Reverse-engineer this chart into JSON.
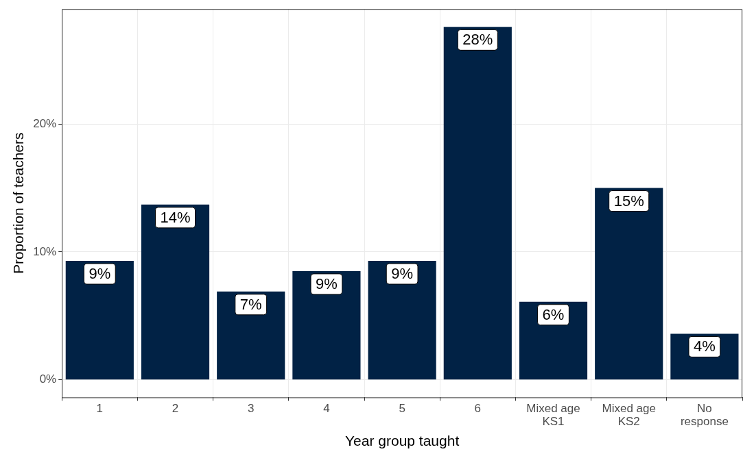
{
  "chart_data": {
    "type": "bar",
    "categories": [
      "1",
      "2",
      "3",
      "4",
      "5",
      "6",
      "Mixed age\nKS1",
      "Mixed age\nKS2",
      "No\nresponse"
    ],
    "values": [
      9.3,
      13.7,
      6.9,
      8.5,
      9.3,
      27.6,
      6.1,
      15.0,
      3.6
    ],
    "value_labels": [
      "9%",
      "14%",
      "7%",
      "9%",
      "9%",
      "28%",
      "6%",
      "15%",
      "4%"
    ],
    "color": "#012245",
    "xlabel": "Year group taught",
    "ylabel": "Proportion of teachers",
    "ylim": [
      -1.38,
      29
    ],
    "yticks": [
      {
        "value": 0,
        "label": "0%"
      },
      {
        "value": 10,
        "label": "10%"
      },
      {
        "value": 20,
        "label": "20%"
      }
    ],
    "grid": true,
    "legend": false
  }
}
